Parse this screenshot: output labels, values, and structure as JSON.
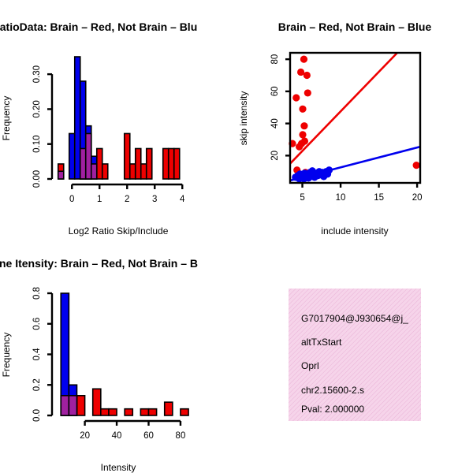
{
  "colors": {
    "brain": "#ee0000",
    "not_brain": "#0000ee",
    "overlap": "#a020a0",
    "info_bg": "#f8d8ec",
    "pval_text": "#aa0000"
  },
  "chart_data": [
    {
      "id": "ratio",
      "type": "bar",
      "title": "RatioData: Brain – Red, Not Brain – Blu",
      "title_visible": "atioData: Brain – Red, Not Brain – Blu",
      "xlabel": "Log2 Ratio Skip/Include",
      "ylabel": "Frequency",
      "xlim": [
        -0.55,
        4.05
      ],
      "ylim": [
        0,
        0.35
      ],
      "xticks": [
        0,
        1,
        2,
        3,
        4
      ],
      "yticks": [
        0.0,
        0.1,
        0.2,
        0.3
      ],
      "ytick_labels": [
        "0.00",
        "0.10",
        "0.20",
        "0.30"
      ],
      "bin_width": 0.2,
      "series": [
        {
          "name": "Brain",
          "color": "brain",
          "bins": [
            {
              "x0": -0.5,
              "v": 0.043
            },
            {
              "x0": 0.3,
              "v": 0.087
            },
            {
              "x0": 0.5,
              "v": 0.13
            },
            {
              "x0": 0.9,
              "v": 0.087
            },
            {
              "x0": 1.1,
              "v": 0.043
            },
            {
              "x0": 1.9,
              "v": 0.13
            },
            {
              "x0": 2.1,
              "v": 0.043
            },
            {
              "x0": 2.3,
              "v": 0.087
            },
            {
              "x0": 2.5,
              "v": 0.043
            },
            {
              "x0": 2.7,
              "v": 0.087
            },
            {
              "x0": 3.3,
              "v": 0.087
            },
            {
              "x0": 3.5,
              "v": 0.087
            },
            {
              "x0": 3.7,
              "v": 0.087
            }
          ]
        },
        {
          "name": "Not Brain",
          "color": "not_brain",
          "bins": [
            {
              "x0": -0.1,
              "v": 0.13
            },
            {
              "x0": 0.1,
              "v": 0.35
            },
            {
              "x0": 0.3,
              "v": 0.28
            },
            {
              "x0": 0.5,
              "v": 0.152
            },
            {
              "x0": 0.7,
              "v": 0.065
            }
          ]
        },
        {
          "name": "Overlap",
          "color": "overlap",
          "bins": [
            {
              "x0": -0.5,
              "v": 0.022
            },
            {
              "x0": 0.3,
              "v": 0.087
            },
            {
              "x0": 0.5,
              "v": 0.13
            },
            {
              "x0": 0.7,
              "v": 0.043
            }
          ]
        }
      ]
    },
    {
      "id": "scatter",
      "type": "scatter",
      "title": "Brain – Red, Not Brain – Blue",
      "xlabel": "include intensity",
      "ylabel": "skip intensity",
      "xlim": [
        3.4,
        20.4
      ],
      "ylim": [
        3.0,
        84.0
      ],
      "xticks": [
        5,
        10,
        15,
        20
      ],
      "yticks": [
        20,
        40,
        60,
        80
      ],
      "series": [
        {
          "name": "Brain",
          "color": "brain",
          "points": [
            [
              3.7,
              27.5
            ],
            [
              4.2,
              56
            ],
            [
              4.3,
              11
            ],
            [
              4.6,
              25.5
            ],
            [
              4.8,
              72
            ],
            [
              4.9,
              27.5
            ],
            [
              5.05,
              49
            ],
            [
              5.05,
              33
            ],
            [
              5.2,
              80
            ],
            [
              5.25,
              38.5
            ],
            [
              5.3,
              29
            ],
            [
              5.4,
              9.5
            ],
            [
              5.6,
              70
            ],
            [
              5.7,
              59
            ],
            [
              19.9,
              14
            ]
          ]
        },
        {
          "name": "Not Brain",
          "color": "not_brain",
          "points": [
            [
              4.1,
              6.5
            ],
            [
              4.4,
              7.5
            ],
            [
              4.6,
              5.5
            ],
            [
              4.7,
              8.5
            ],
            [
              4.9,
              6.0
            ],
            [
              5.0,
              7.5
            ],
            [
              5.2,
              5.5
            ],
            [
              5.3,
              9.0
            ],
            [
              5.5,
              6.5
            ],
            [
              5.6,
              8.0
            ],
            [
              5.8,
              6.0
            ],
            [
              6.0,
              9.5
            ],
            [
              6.1,
              7.0
            ],
            [
              6.3,
              10.5
            ],
            [
              6.5,
              8.5
            ],
            [
              6.6,
              6.5
            ],
            [
              6.8,
              9.0
            ],
            [
              7.0,
              7.5
            ],
            [
              7.2,
              10.0
            ],
            [
              7.4,
              8.0
            ],
            [
              7.6,
              9.5
            ],
            [
              7.8,
              7.0
            ],
            [
              8.1,
              10.0
            ],
            [
              8.3,
              8.5
            ],
            [
              8.5,
              11.0
            ]
          ]
        }
      ],
      "lines": [
        {
          "color": "brain",
          "x": [
            3.4,
            17.4
          ],
          "y": [
            15.0,
            84.0
          ]
        },
        {
          "color": "not_brain",
          "x": [
            3.4,
            20.4
          ],
          "y": [
            4.5,
            25.5
          ]
        }
      ]
    },
    {
      "id": "intensity",
      "type": "bar",
      "title": "Gene Itensity: Brain – Red, Not Brain – B",
      "title_visible": "ne Itensity: Brain – Red, Not Brain – B",
      "xlabel": "Intensity",
      "ylabel": "Frequency",
      "xlim": [
        2.4,
        82.0
      ],
      "ylim": [
        0,
        0.8
      ],
      "xticks": [
        20,
        40,
        60,
        80
      ],
      "yticks": [
        0.0,
        0.2,
        0.4,
        0.6,
        0.8
      ],
      "ytick_labels": [
        "0.0",
        "0.2",
        "0.4",
        "0.6",
        "0.8"
      ],
      "bin_width": 5,
      "series": [
        {
          "name": "Brain",
          "color": "brain",
          "bins": [
            {
              "x0": 5,
              "v": 0.13
            },
            {
              "x0": 10,
              "v": 0.043
            },
            {
              "x0": 15,
              "v": 0.13
            },
            {
              "x0": 25,
              "v": 0.174
            },
            {
              "x0": 30,
              "v": 0.043
            },
            {
              "x0": 35,
              "v": 0.043
            },
            {
              "x0": 45,
              "v": 0.043
            },
            {
              "x0": 55,
              "v": 0.043
            },
            {
              "x0": 60,
              "v": 0.043
            },
            {
              "x0": 70,
              "v": 0.087
            },
            {
              "x0": 80,
              "v": 0.043
            }
          ]
        },
        {
          "name": "Not Brain",
          "color": "not_brain",
          "bins": [
            {
              "x0": 5,
              "v": 0.8
            },
            {
              "x0": 10,
              "v": 0.2
            }
          ]
        },
        {
          "name": "Overlap",
          "color": "overlap",
          "bins": [
            {
              "x0": 5,
              "v": 0.13
            },
            {
              "x0": 10,
              "v": 0.13
            }
          ]
        }
      ]
    }
  ],
  "info_panel": {
    "line1": "G7017904@J930654@j_",
    "line2": "altTxStart",
    "line3": "Oprl",
    "line4": "chr2.15600-2.s",
    "pval": "Pval: 2.000000"
  }
}
